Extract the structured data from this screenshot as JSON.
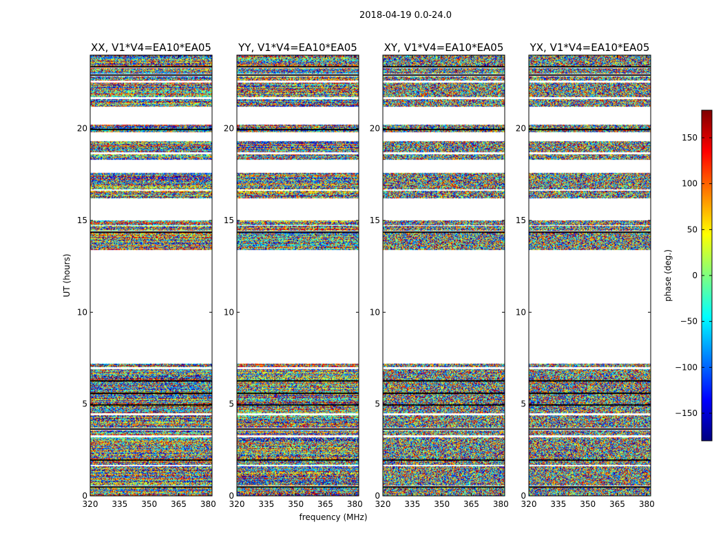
{
  "chart_data": {
    "type": "heatmap",
    "title": "2018-04-19 0.0-24.0",
    "xlabel": "frequency (MHz)",
    "ylabel": "UT (hours)",
    "xlim": [
      320,
      382
    ],
    "ylim": [
      0,
      24
    ],
    "x_ticks": [
      "320",
      "335",
      "350",
      "365",
      "380"
    ],
    "x_tick_values": [
      320,
      335,
      350,
      365,
      380
    ],
    "y_ticks": [
      "0",
      "5",
      "10",
      "15",
      "20"
    ],
    "y_tick_values": [
      0,
      5,
      10,
      15,
      20
    ],
    "panels": [
      {
        "title": "XX, V1*V4=EA10*EA05",
        "polarization": "XX",
        "coherence": "low"
      },
      {
        "title": "YY, V1*V4=EA10*EA05",
        "polarization": "YY",
        "coherence": "low"
      },
      {
        "title": "XY, V1*V4=EA10*EA05",
        "polarization": "XY",
        "coherence": "none"
      },
      {
        "title": "YX, V1*V4=EA10*EA05",
        "polarization": "YX",
        "coherence": "none"
      }
    ],
    "data_blocks_hours": [
      [
        0.0,
        0.5
      ],
      [
        0.55,
        1.6
      ],
      [
        1.7,
        3.2
      ],
      [
        3.3,
        3.55
      ],
      [
        3.7,
        4.4
      ],
      [
        4.5,
        6.9
      ],
      [
        7.0,
        7.2
      ],
      [
        13.4,
        14.4
      ],
      [
        14.45,
        14.7
      ],
      [
        14.75,
        15.0
      ],
      [
        16.2,
        16.6
      ],
      [
        16.7,
        17.6
      ],
      [
        18.3,
        18.6
      ],
      [
        18.7,
        19.3
      ],
      [
        19.8,
        20.2
      ],
      [
        21.2,
        21.6
      ],
      [
        21.7,
        22.5
      ],
      [
        22.6,
        22.85
      ],
      [
        23.0,
        23.3
      ],
      [
        23.4,
        24.0
      ]
    ],
    "dark_lines_hours": [
      0.5,
      1.95,
      3.65,
      4.95,
      5.6,
      6.25,
      14.38,
      19.95,
      22.9,
      23.35
    ],
    "colorbar": {
      "label": "phase (deg.)",
      "range": [
        -180,
        180
      ],
      "ticks": [
        "150",
        "100",
        "50",
        "0",
        "−50",
        "−100",
        "−150"
      ],
      "tick_values": [
        150,
        100,
        50,
        0,
        -50,
        -100,
        -150
      ],
      "colormap": "jet",
      "colors": [
        "#00007f",
        "#0000ff",
        "#007fff",
        "#00ffff",
        "#7fff7f",
        "#ffff00",
        "#ff7f00",
        "#ff0000",
        "#7f0000"
      ]
    }
  }
}
